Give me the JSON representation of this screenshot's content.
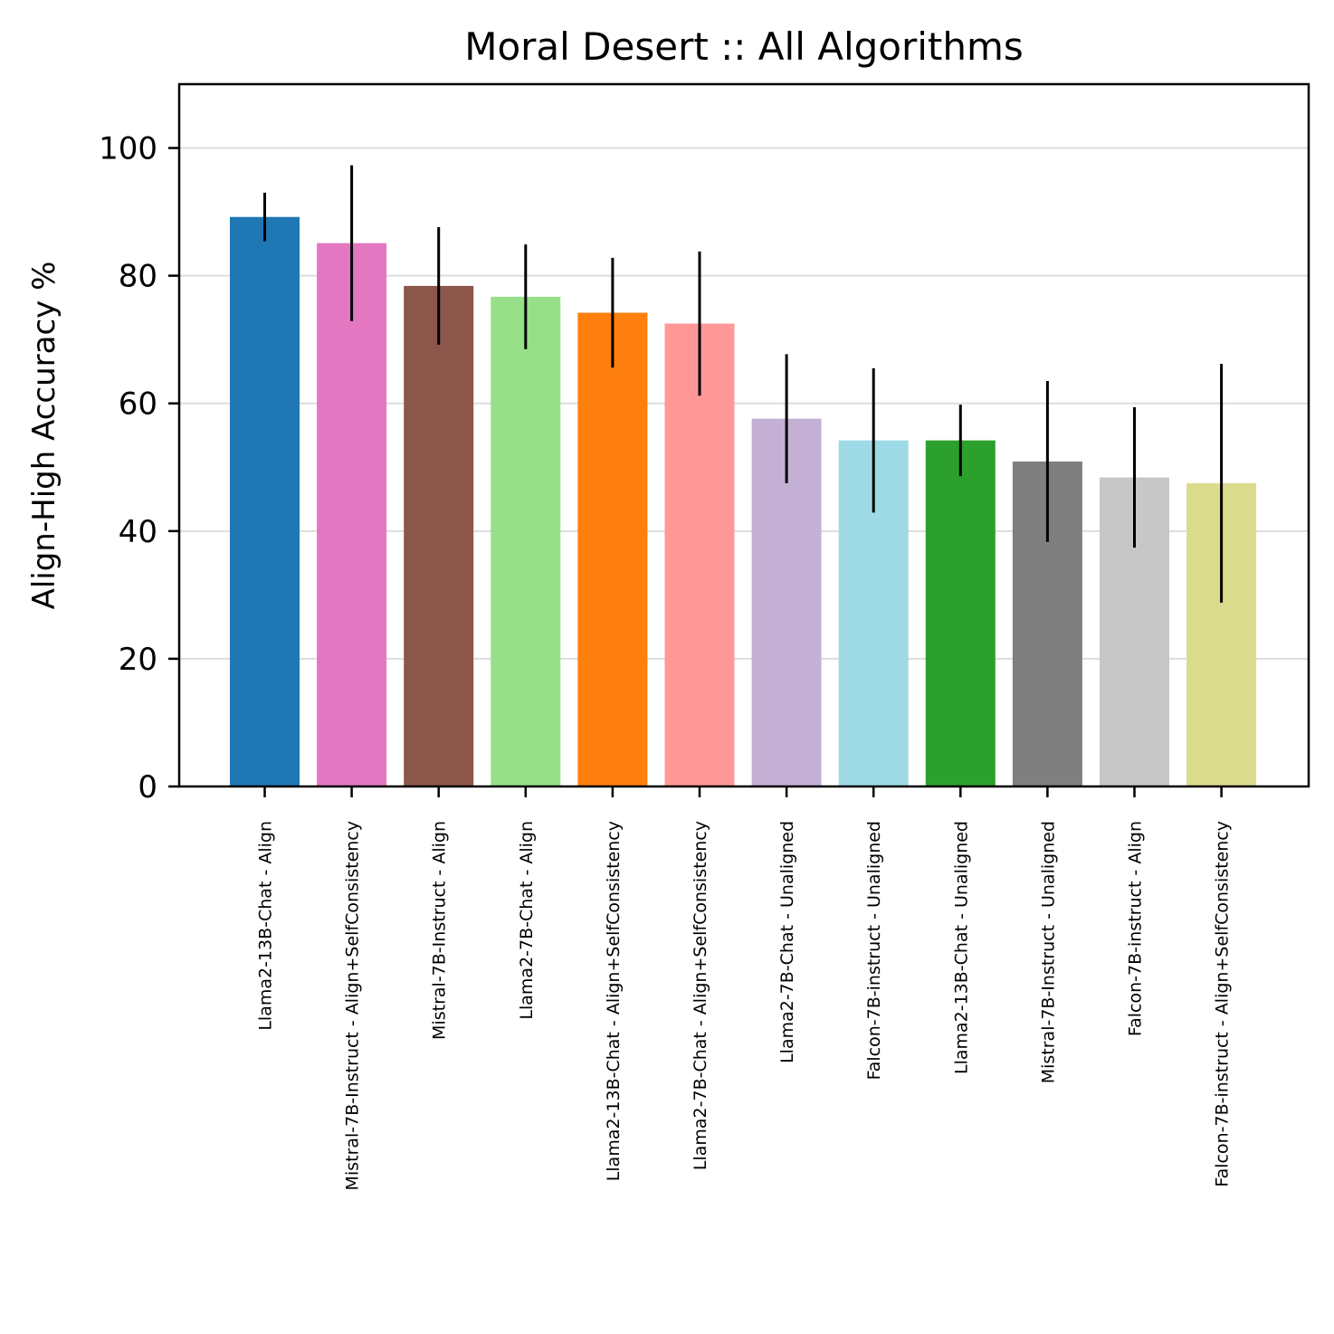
{
  "chart_data": {
    "type": "bar",
    "title": "Moral Desert :: All Algorithms",
    "xlabel": "",
    "ylabel": "Align-High Accuracy %",
    "ylim": [
      0,
      110
    ],
    "yticks": [
      0,
      20,
      40,
      60,
      80,
      100
    ],
    "grid": "horizontal",
    "categories": [
      "Llama2-13B-Chat - Align",
      "Mistral-7B-Instruct - Align+SelfConsistency",
      "Mistral-7B-Instruct - Align",
      "Llama2-7B-Chat - Align",
      "Llama2-13B-Chat - Align+SelfConsistency",
      "Llama2-7B-Chat - Align+SelfConsistency",
      "Llama2-7B-Chat - Unaligned",
      "Falcon-7B-instruct - Unaligned",
      "Llama2-13B-Chat - Unaligned",
      "Mistral-7B-Instruct - Unaligned",
      "Falcon-7B-instruct - Align",
      "Falcon-7B-instruct - Align+SelfConsistency"
    ],
    "values": [
      89.2,
      85.1,
      78.4,
      76.7,
      74.2,
      72.5,
      57.6,
      54.2,
      54.2,
      50.9,
      48.4,
      47.5
    ],
    "errors": [
      3.8,
      12.2,
      9.2,
      8.2,
      8.6,
      11.3,
      10.1,
      11.3,
      5.6,
      12.6,
      11.0,
      18.7
    ],
    "colors": [
      "#1f77b4",
      "#e377c2",
      "#8c564b",
      "#98df8a",
      "#ff7f0e",
      "#ff9896",
      "#c5b0d5",
      "#9edae5",
      "#2ca02c",
      "#7f7f7f",
      "#c7c7c7",
      "#dbdb8d"
    ]
  }
}
